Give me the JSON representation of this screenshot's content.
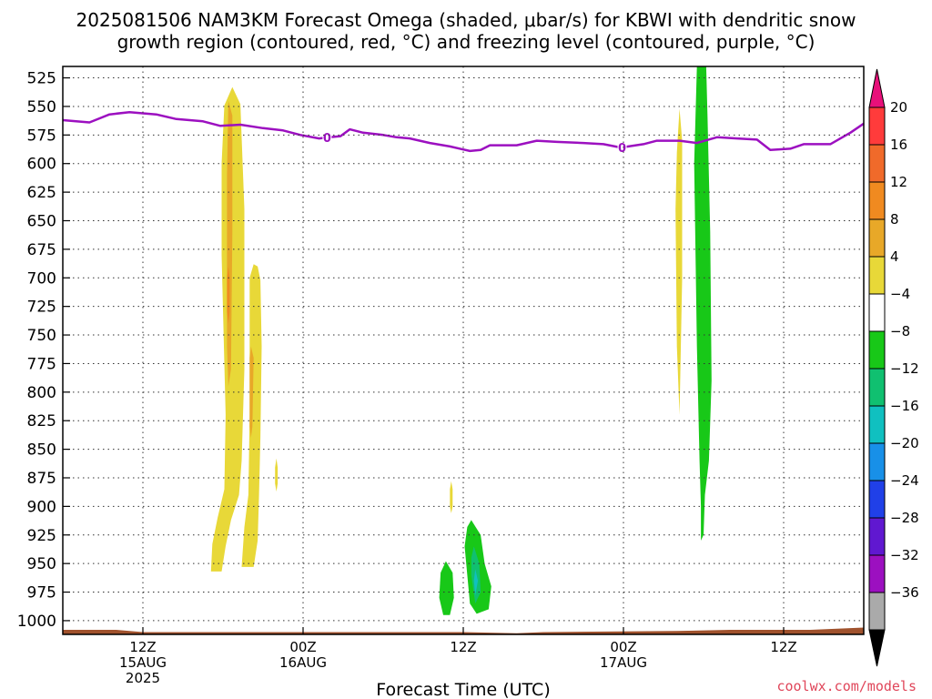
{
  "chart_data": {
    "type": "heatmap",
    "title_line1": "2025081506 NAM3KM Forecast Omega (shaded, μbar/s) for KBWI with dendritic snow",
    "title_line2": "growth region (contoured, red, °C) and freezing level (contoured, purple, °C)",
    "xlabel": "Forecast Time (UTC)",
    "credit": "coolwx.com/models",
    "x_range_hours": [
      6,
      66
    ],
    "y_range_mb": [
      515,
      1012
    ],
    "y_ticks": [
      525,
      550,
      575,
      600,
      625,
      650,
      675,
      700,
      725,
      750,
      775,
      800,
      825,
      850,
      875,
      900,
      925,
      950,
      975,
      1000
    ],
    "x_ticks": [
      {
        "hour": 12,
        "lines": [
          "12Z",
          "15AUG",
          "2025"
        ]
      },
      {
        "hour": 24,
        "lines": [
          "00Z",
          "16AUG"
        ]
      },
      {
        "hour": 36,
        "lines": [
          "12Z"
        ]
      },
      {
        "hour": 48,
        "lines": [
          "00Z",
          "17AUG"
        ]
      },
      {
        "hour": 60,
        "lines": [
          "12Z"
        ]
      }
    ],
    "colorbar": {
      "levels": [
        20,
        16,
        12,
        8,
        4,
        -4,
        -8,
        -12,
        -16,
        -20,
        -24,
        -28,
        -32,
        -36
      ],
      "colors": [
        "#ff3b3b",
        "#f06a2a",
        "#f08a20",
        "#e8a828",
        "#e8d838",
        "#ffffff",
        "#18c818",
        "#10c070",
        "#10c0c0",
        "#1890e8",
        "#2040e8",
        "#6018d0",
        "#9c10c0",
        "#aaaaaa"
      ],
      "top_color": "#e8107a",
      "bottom_color": "#000000"
    },
    "freezing_level": {
      "color": "#9c10c0",
      "label": "0",
      "label_hours": [
        25.8,
        47.9
      ],
      "points": [
        [
          6,
          562
        ],
        [
          8,
          564
        ],
        [
          9.5,
          557
        ],
        [
          11,
          555
        ],
        [
          13,
          557
        ],
        [
          14.5,
          561
        ],
        [
          16.5,
          563
        ],
        [
          17.8,
          567
        ],
        [
          19.3,
          566
        ],
        [
          21,
          569
        ],
        [
          22.5,
          571
        ],
        [
          23.8,
          575
        ],
        [
          25.2,
          578
        ],
        [
          26,
          577
        ],
        [
          26.8,
          576
        ],
        [
          27.5,
          570
        ],
        [
          28.5,
          573
        ],
        [
          30,
          575
        ],
        [
          31,
          577
        ],
        [
          32,
          578
        ],
        [
          33.5,
          582
        ],
        [
          35,
          585
        ],
        [
          36.5,
          589
        ],
        [
          37.3,
          588
        ],
        [
          38,
          584
        ],
        [
          40,
          584
        ],
        [
          41.5,
          580
        ],
        [
          43,
          581
        ],
        [
          45,
          582
        ],
        [
          46.5,
          583
        ],
        [
          47.8,
          586
        ],
        [
          49.5,
          583
        ],
        [
          50.5,
          580
        ],
        [
          52.2,
          580
        ],
        [
          53.5,
          582
        ],
        [
          55,
          577
        ],
        [
          56.5,
          578
        ],
        [
          58,
          579
        ],
        [
          59,
          588
        ],
        [
          60.5,
          587
        ],
        [
          61.5,
          583
        ],
        [
          63.5,
          583
        ],
        [
          65,
          573
        ],
        [
          66,
          565
        ]
      ]
    },
    "omega_shapes": [
      {
        "color": "#e8d838",
        "points": [
          [
            18.1,
            549
          ],
          [
            18.7,
            533
          ],
          [
            19.3,
            548
          ],
          [
            19.6,
            640
          ],
          [
            19.6,
            780
          ],
          [
            19.4,
            860
          ],
          [
            19.2,
            890
          ],
          [
            18.6,
            912
          ],
          [
            18.2,
            935
          ],
          [
            17.9,
            957
          ],
          [
            17.1,
            957
          ],
          [
            17.2,
            933
          ],
          [
            17.6,
            910
          ],
          [
            18.1,
            885
          ],
          [
            18.2,
            820
          ],
          [
            17.9,
            680
          ],
          [
            17.9,
            600
          ]
        ]
      },
      {
        "color": "#e8d838",
        "points": [
          [
            20.3,
            688
          ],
          [
            20.6,
            690
          ],
          [
            20.8,
            702
          ],
          [
            20.9,
            760
          ],
          [
            20.8,
            840
          ],
          [
            20.7,
            890
          ],
          [
            20.6,
            930
          ],
          [
            20.3,
            953
          ],
          [
            19.4,
            953
          ],
          [
            19.6,
            918
          ],
          [
            19.9,
            890
          ],
          [
            20.0,
            820
          ],
          [
            20.0,
            740
          ],
          [
            20.0,
            700
          ]
        ]
      },
      {
        "color": "#e8d838",
        "points": [
          [
            22.0,
            858
          ],
          [
            22.1,
            866
          ],
          [
            22.1,
            880
          ],
          [
            22.0,
            887
          ],
          [
            21.9,
            880
          ],
          [
            21.9,
            866
          ]
        ]
      },
      {
        "color": "#e8a828",
        "points": [
          [
            18.4,
            545
          ],
          [
            18.7,
            558
          ],
          [
            18.7,
            660
          ],
          [
            18.6,
            780
          ],
          [
            18.4,
            795
          ],
          [
            18.3,
            760
          ],
          [
            18.3,
            610
          ]
        ]
      },
      {
        "color": "#f08a20",
        "points": [
          [
            18.4,
            690
          ],
          [
            18.5,
            700
          ],
          [
            18.5,
            730
          ],
          [
            18.4,
            740
          ],
          [
            18.3,
            730
          ],
          [
            18.3,
            700
          ]
        ]
      },
      {
        "color": "#e8a828",
        "points": [
          [
            20.1,
            760
          ],
          [
            20.3,
            770
          ],
          [
            20.2,
            830
          ],
          [
            20.1,
            840
          ],
          [
            20.0,
            830
          ],
          [
            20.0,
            770
          ]
        ]
      },
      {
        "color": "#e8d838",
        "points": [
          [
            35.1,
            878
          ],
          [
            35.2,
            885
          ],
          [
            35.2,
            900
          ],
          [
            35.1,
            906
          ],
          [
            35.0,
            900
          ],
          [
            35.0,
            885
          ]
        ]
      },
      {
        "color": "#18c818",
        "points": [
          [
            34.7,
            948
          ],
          [
            35.2,
            958
          ],
          [
            35.3,
            980
          ],
          [
            35.0,
            995
          ],
          [
            34.5,
            995
          ],
          [
            34.2,
            980
          ],
          [
            34.3,
            958
          ]
        ]
      },
      {
        "color": "#18c818",
        "points": [
          [
            36.6,
            912
          ],
          [
            37.3,
            925
          ],
          [
            37.6,
            950
          ],
          [
            38.1,
            970
          ],
          [
            37.9,
            990
          ],
          [
            37.0,
            994
          ],
          [
            36.5,
            985
          ],
          [
            36.3,
            960
          ],
          [
            36.1,
            935
          ],
          [
            36.3,
            918
          ]
        ]
      },
      {
        "color": "#10c070",
        "points": [
          [
            36.8,
            935
          ],
          [
            37.2,
            950
          ],
          [
            37.3,
            975
          ],
          [
            36.9,
            985
          ],
          [
            36.6,
            960
          ],
          [
            36.6,
            945
          ]
        ]
      },
      {
        "color": "#10c0c0",
        "points": [
          [
            36.9,
            955
          ],
          [
            37.1,
            965
          ],
          [
            36.9,
            978
          ],
          [
            36.8,
            965
          ]
        ]
      },
      {
        "color": "#e8d838",
        "points": [
          [
            52.2,
            552
          ],
          [
            52.4,
            580
          ],
          [
            52.4,
            700
          ],
          [
            52.2,
            820
          ],
          [
            52.0,
            760
          ],
          [
            51.9,
            640
          ],
          [
            52.0,
            590
          ]
        ]
      },
      {
        "color": "#18c818",
        "points": [
          [
            53.5,
            515
          ],
          [
            54.2,
            515
          ],
          [
            54.3,
            560
          ],
          [
            54.5,
            660
          ],
          [
            54.6,
            790
          ],
          [
            54.4,
            860
          ],
          [
            54.1,
            890
          ],
          [
            54.0,
            925
          ],
          [
            53.8,
            930
          ],
          [
            53.8,
            900
          ],
          [
            53.7,
            860
          ],
          [
            53.5,
            760
          ],
          [
            53.3,
            600
          ]
        ]
      }
    ],
    "ground_color": "#a0522d"
  }
}
